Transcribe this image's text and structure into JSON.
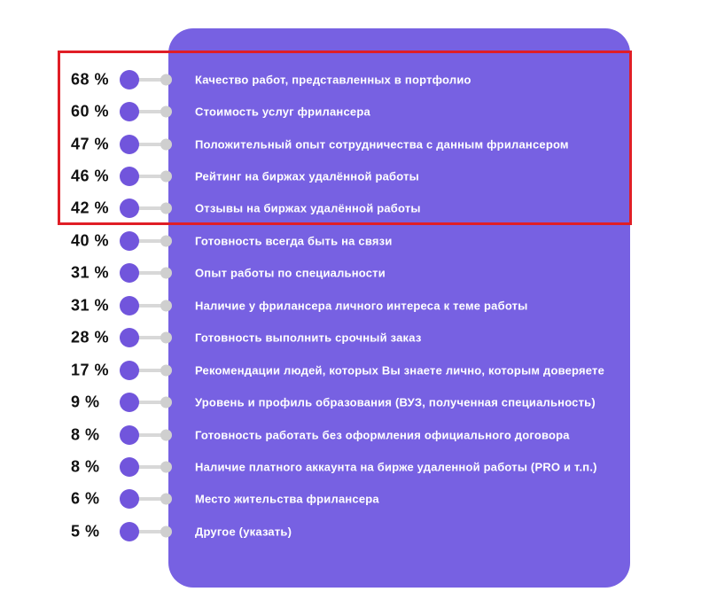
{
  "chart_data": {
    "type": "bar",
    "title": "",
    "unit": "%",
    "orientation": "horizontal-ranked-list",
    "grid": false,
    "legend_position": "none",
    "categories": [
      "Качество работ, представленных в портфолио",
      "Стоимость услуг фрилансера",
      "Положительный опыт сотрудничества с данным фрилансером",
      "Рейтинг на биржах удалённой работы",
      "Отзывы на биржах удалённой работы",
      "Готовность всегда быть на связи",
      "Опыт работы по специальности",
      "Наличие у фрилансера личного интереса к теме работы",
      "Готовность выполнить срочный заказ",
      "Рекомендации людей, которых Вы знаете лично, которым доверяете",
      "Уровень и профиль образования (ВУЗ, полученная специальность)",
      "Готовность работать без оформления официального договора",
      "Наличие платного аккаунта на бирже удаленной работы (PRO и т.п.)",
      "Место жительства фрилансера",
      "Другое (указать)"
    ],
    "values": [
      68,
      60,
      47,
      46,
      42,
      40,
      31,
      31,
      28,
      17,
      9,
      8,
      8,
      6,
      5
    ],
    "display_values": [
      "68 %",
      "60 %",
      "47 %",
      "46 %",
      "42 %",
      "40 %",
      "31 %",
      "31 %",
      "28 %",
      "17 %",
      "9 %",
      "8 %",
      "8 %",
      "6 %",
      "5 %"
    ],
    "highlighted_rows": [
      0,
      1,
      2,
      3,
      4
    ]
  },
  "colors": {
    "panel": "#7761e2",
    "value_dot": "#7155dc",
    "connector": "#d8d8d8",
    "edge_dot": "#cfcfcf",
    "highlight_box": "#e01e26",
    "percent_text": "#111111",
    "label_text": "#ffffff",
    "background": "#ffffff"
  }
}
